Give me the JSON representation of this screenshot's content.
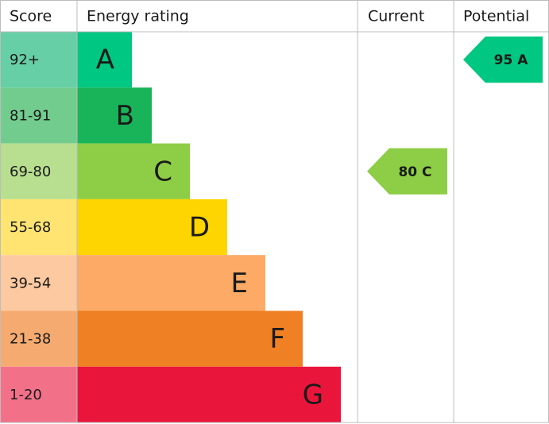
{
  "chart_data": {
    "type": "epc",
    "headers": [
      "Score",
      "Energy rating",
      "Current",
      "Potential"
    ],
    "bands": [
      {
        "score": "92+",
        "rating": "A",
        "color": "#00c781",
        "score_color": "#66cfa5"
      },
      {
        "score": "81-91",
        "rating": "B",
        "color": "#19b459",
        "score_color": "#72cc8e"
      },
      {
        "score": "69-80",
        "rating": "C",
        "color": "#8dce46",
        "score_color": "#b8df8f"
      },
      {
        "score": "55-68",
        "rating": "D",
        "color": "#ffd500",
        "score_color": "#ffe471"
      },
      {
        "score": "39-54",
        "rating": "E",
        "color": "#fcaa65",
        "score_color": "#fdc9a0"
      },
      {
        "score": "21-38",
        "rating": "F",
        "color": "#ef8023",
        "score_color": "#f5ab70"
      },
      {
        "score": "1-20",
        "rating": "G",
        "color": "#e9153b",
        "score_color": "#f27189"
      }
    ],
    "current": "80 C",
    "potential": "95 A"
  }
}
